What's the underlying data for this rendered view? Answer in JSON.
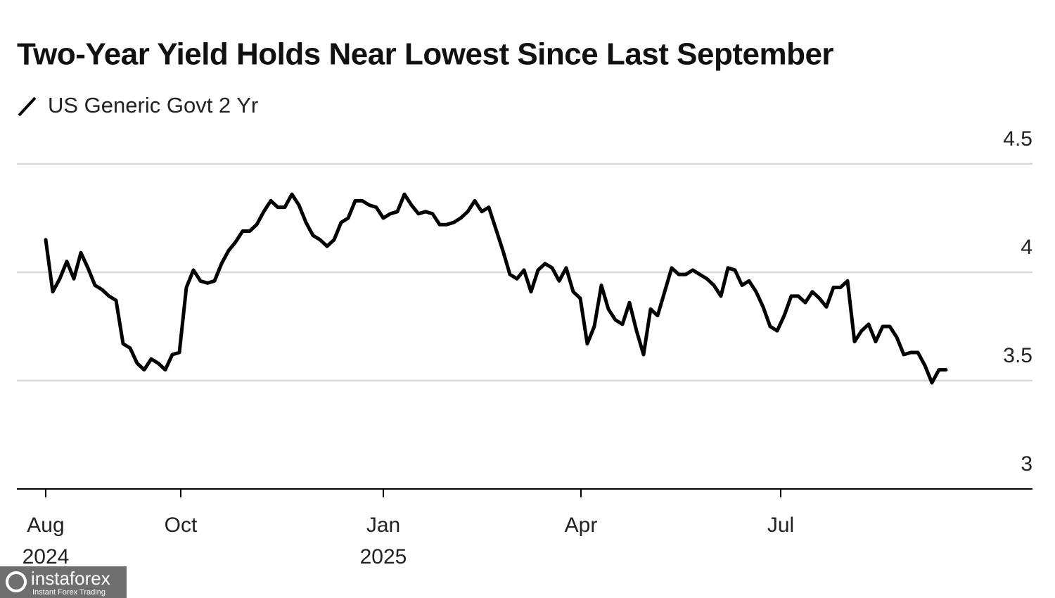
{
  "chart_data": {
    "type": "line",
    "title": "Two-Year Yield Holds Near Lowest Since Last September",
    "series": [
      {
        "name": "US Generic Govt 2 Yr",
        "color": "#000000",
        "values": [
          4.15,
          3.91,
          3.97,
          4.05,
          3.97,
          4.09,
          4.02,
          3.94,
          3.92,
          3.89,
          3.87,
          3.67,
          3.65,
          3.58,
          3.55,
          3.6,
          3.58,
          3.55,
          3.62,
          3.63,
          3.93,
          4.01,
          3.96,
          3.95,
          3.96,
          4.04,
          4.1,
          4.14,
          4.19,
          4.19,
          4.22,
          4.28,
          4.33,
          4.3,
          4.3,
          4.36,
          4.31,
          4.23,
          4.17,
          4.15,
          4.12,
          4.15,
          4.23,
          4.25,
          4.33,
          4.33,
          4.31,
          4.3,
          4.25,
          4.27,
          4.28,
          4.36,
          4.31,
          4.27,
          4.28,
          4.27,
          4.22,
          4.22,
          4.23,
          4.25,
          4.28,
          4.33,
          4.28,
          4.3,
          4.2,
          4.1,
          3.99,
          3.97,
          4.01,
          3.91,
          4.01,
          4.04,
          4.02,
          3.96,
          4.02,
          3.91,
          3.88,
          3.67,
          3.75,
          3.94,
          3.83,
          3.78,
          3.76,
          3.86,
          3.73,
          3.62,
          3.83,
          3.8,
          3.91,
          4.02,
          3.99,
          3.99,
          4.01,
          3.99,
          3.97,
          3.94,
          3.89,
          4.02,
          4.01,
          3.94,
          3.96,
          3.91,
          3.84,
          3.75,
          3.73,
          3.8,
          3.89,
          3.89,
          3.86,
          3.91,
          3.88,
          3.84,
          3.93,
          3.93,
          3.96,
          3.68,
          3.73,
          3.76,
          3.68,
          3.75,
          3.75,
          3.7,
          3.62,
          3.63,
          3.63,
          3.57,
          3.49,
          3.55,
          3.55
        ]
      }
    ],
    "xlim": [
      -4.1,
      140.3
    ],
    "xticks": [
      {
        "value": 0,
        "label": "Aug",
        "sublabel": "2024"
      },
      {
        "value": 19.2,
        "label": "Oct"
      },
      {
        "value": 48,
        "label": "Jan",
        "sublabel": "2025"
      },
      {
        "value": 76.1,
        "label": "Apr"
      },
      {
        "value": 104.5,
        "label": "Jul"
      }
    ],
    "ylim": [
      3,
      4.5
    ],
    "yticks": [
      3,
      3.5,
      4,
      4.5
    ],
    "grid": true
  },
  "watermark": {
    "name": "instaforex",
    "tagline": "Instant Forex Trading"
  }
}
